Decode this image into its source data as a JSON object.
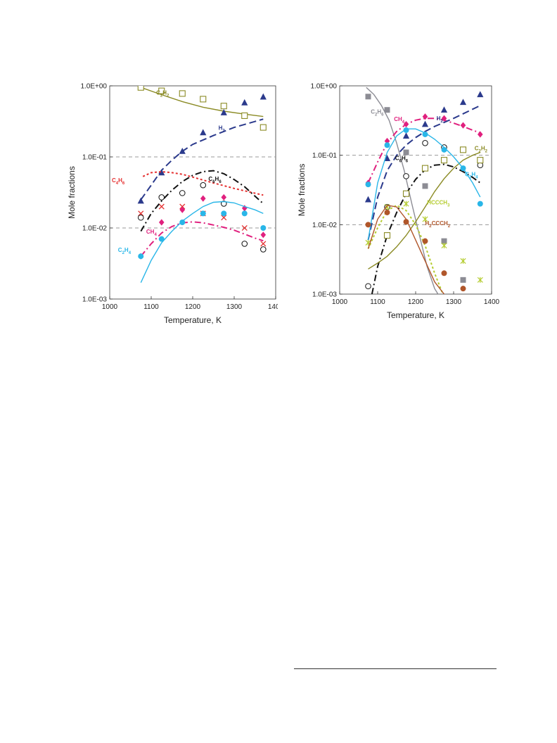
{
  "chart_data": [
    {
      "type": "line",
      "xlabel": "Temperature, K",
      "ylabel": "Mole fractions",
      "xlim": [
        1000,
        1400
      ],
      "ylim": [
        0.001,
        1
      ],
      "yscale": "log",
      "xticks": [
        "1000",
        "1100",
        "1200",
        "1300",
        "1400"
      ],
      "yticks": [
        "1.0E-03",
        "1.0E-02",
        "1.0E-01",
        "1.0E+00"
      ],
      "ytick_values": [
        0.001,
        0.01,
        0.1,
        1
      ],
      "dashed_reference_lines": [
        0.01,
        0.1
      ],
      "grid": false,
      "series": [
        {
          "name": "C2H2",
          "label_sub": [
            "C",
            "2",
            "H",
            "2"
          ],
          "color": "#8b8b25",
          "line": "solid",
          "marker": "square-open",
          "curve": {
            "x": [
              1075,
              1125,
              1175,
              1225,
              1275,
              1325,
              1370
            ],
            "y": [
              0.95,
              0.75,
              0.6,
              0.5,
              0.44,
              0.4,
              0.37
            ]
          },
          "points": {
            "x": [
              1075,
              1125,
              1175,
              1225,
              1275,
              1325,
              1370
            ],
            "y": [
              0.95,
              0.85,
              0.78,
              0.65,
              0.52,
              0.38,
              0.26
            ]
          },
          "label_at": [
            1112,
            0.75
          ]
        },
        {
          "name": "H2",
          "label_sub": [
            "H",
            "2"
          ],
          "color": "#2b3a8c",
          "line": "dashed",
          "marker": "triangle",
          "curve": {
            "x": [
              1075,
              1100,
              1125,
              1150,
              1175,
              1200,
              1250,
              1300,
              1370
            ],
            "y": [
              0.025,
              0.04,
              0.065,
              0.09,
              0.12,
              0.15,
              0.2,
              0.26,
              0.34
            ]
          },
          "points": {
            "x": [
              1075,
              1125,
              1175,
              1225,
              1275,
              1325,
              1370
            ],
            "y": [
              0.024,
              0.06,
              0.12,
              0.22,
              0.42,
              0.58,
              0.7
            ]
          },
          "label_at": [
            1262,
            0.24
          ]
        },
        {
          "name": "C4H6",
          "label_sub": [
            "C",
            "4",
            "H",
            "6"
          ],
          "color": "#e53030",
          "line": "dotted",
          "marker": "x",
          "curve": {
            "x": [
              1080,
              1100,
              1125,
              1150,
              1175,
              1200,
              1250,
              1300,
              1370
            ],
            "y": [
              0.053,
              0.06,
              0.062,
              0.06,
              0.057,
              0.052,
              0.043,
              0.036,
              0.029
            ]
          },
          "points": {
            "x": [
              1075,
              1125,
              1175,
              1225,
              1275,
              1325,
              1370
            ],
            "y": [
              0.016,
              0.02,
              0.02,
              0.016,
              0.014,
              0.01,
              0.006
            ]
          },
          "label_at": [
            1005,
            0.044
          ]
        },
        {
          "name": "C6H6",
          "label_sub": [
            "C",
            "6",
            "H",
            "6"
          ],
          "color": "#111111",
          "line": "dashdot",
          "marker": "circle-open",
          "curve": {
            "x": [
              1075,
              1100,
              1125,
              1150,
              1175,
              1200,
              1225,
              1250,
              1275,
              1300,
              1325,
              1350,
              1370
            ],
            "y": [
              0.009,
              0.016,
              0.024,
              0.034,
              0.045,
              0.055,
              0.062,
              0.064,
              0.058,
              0.048,
              0.038,
              0.028,
              0.022
            ]
          },
          "points": {
            "x": [
              1075,
              1125,
              1175,
              1225,
              1275,
              1325,
              1370
            ],
            "y": [
              0.014,
              0.027,
              0.031,
              0.04,
              0.022,
              0.006,
              0.005
            ]
          },
          "label_at": [
            1238,
            0.046
          ]
        },
        {
          "name": "CH4",
          "label_sub": [
            "CH",
            "4"
          ],
          "color": "#e0207e",
          "line": "dashdot",
          "marker": "diamond",
          "curve": {
            "x": [
              1075,
              1100,
              1125,
              1150,
              1175,
              1200,
              1225,
              1250,
              1275,
              1300,
              1325,
              1350,
              1370
            ],
            "y": [
              0.004,
              0.006,
              0.0085,
              0.0105,
              0.0118,
              0.0122,
              0.0118,
              0.011,
              0.0102,
              0.0093,
              0.0082,
              0.0072,
              0.0066
            ]
          },
          "points": {
            "x": [
              1075,
              1125,
              1175,
              1225,
              1275,
              1325,
              1370
            ],
            "y": [
              0.004,
              0.012,
              0.018,
              0.026,
              0.027,
              0.019,
              0.008
            ]
          },
          "label_at": [
            1088,
            0.0083
          ]
        },
        {
          "name": "C2H4",
          "label_sub": [
            "C",
            "2",
            "H",
            "4"
          ],
          "color": "#29b6e8",
          "line": "solid",
          "marker": "circle",
          "curve": {
            "x": [
              1075,
              1100,
              1125,
              1150,
              1175,
              1200,
              1225,
              1250,
              1275,
              1300,
              1325,
              1350,
              1370
            ],
            "y": [
              0.0017,
              0.0035,
              0.0062,
              0.009,
              0.0125,
              0.016,
              0.02,
              0.023,
              0.0235,
              0.0225,
              0.02,
              0.018,
              0.016
            ]
          },
          "points": {
            "x": [
              1075,
              1125,
              1175,
              1225,
              1275,
              1325,
              1370
            ],
            "y": [
              0.004,
              0.007,
              0.012,
              0.016,
              0.016,
              0.016,
              0.01
            ]
          },
          "label_at": [
            1020,
            0.0046
          ]
        }
      ]
    },
    {
      "type": "line",
      "xlabel": "Temperature, K",
      "ylabel": "Mole fractions",
      "xlim": [
        1000,
        1400
      ],
      "ylim": [
        0.001,
        1
      ],
      "yscale": "log",
      "xticks": [
        "1000",
        "1100",
        "1200",
        "1300",
        "1400"
      ],
      "yticks": [
        "1.0E-03",
        "1.0E-02",
        "1.0E-01",
        "1.0E+00"
      ],
      "ytick_values": [
        0.001,
        0.01,
        0.1,
        1
      ],
      "dashed_reference_lines": [
        0.01,
        0.1
      ],
      "grid": false,
      "series": [
        {
          "name": "C2H6",
          "label_sub": [
            "C",
            "2",
            "H",
            "6"
          ],
          "color": "#8c8c94",
          "line": "solid",
          "marker": "square",
          "curve": {
            "x": [
              1070,
              1090,
              1110,
              1130,
              1150,
              1170,
              1190,
              1210,
              1230,
              1250,
              1270
            ],
            "y": [
              0.95,
              0.75,
              0.52,
              0.32,
              0.15,
              0.06,
              0.02,
              0.007,
              0.0025,
              0.0012,
              0.0008
            ]
          },
          "points": {
            "x": [
              1075,
              1125,
              1175,
              1225,
              1275,
              1325
            ],
            "y": [
              0.7,
              0.45,
              0.11,
              0.036,
              0.0058,
              0.0016
            ]
          },
          "label_at": [
            1082,
            0.4
          ]
        },
        {
          "name": "CH4",
          "label_sub": [
            "CH",
            "4"
          ],
          "color": "#e0207e",
          "line": "dashdot",
          "marker": "diamond",
          "curve": {
            "x": [
              1075,
              1100,
              1125,
              1150,
              1175,
              1200,
              1225,
              1250,
              1275,
              1300,
              1325,
              1350,
              1370
            ],
            "y": [
              0.04,
              0.08,
              0.15,
              0.22,
              0.28,
              0.32,
              0.34,
              0.34,
              0.32,
              0.29,
              0.26,
              0.23,
              0.21
            ]
          },
          "points": {
            "x": [
              1075,
              1125,
              1175,
              1225,
              1275,
              1325,
              1370
            ],
            "y": [
              0.04,
              0.16,
              0.28,
              0.36,
              0.34,
              0.27,
              0.2
            ]
          },
          "label_at": [
            1143,
            0.31
          ]
        },
        {
          "name": "H2",
          "label_sub": [
            "H",
            "2"
          ],
          "color": "#2b3a8c",
          "line": "dashed",
          "marker": "triangle",
          "curve": {
            "x": [
              1075,
              1100,
              1125,
              1150,
              1175,
              1200,
              1225,
              1250,
              1300,
              1370
            ],
            "y": [
              0.006,
              0.025,
              0.06,
              0.1,
              0.14,
              0.18,
              0.22,
              0.26,
              0.34,
              0.52
            ]
          },
          "points": {
            "x": [
              1075,
              1125,
              1175,
              1225,
              1275,
              1325,
              1370
            ],
            "y": [
              0.023,
              0.09,
              0.19,
              0.28,
              0.45,
              0.58,
              0.75
            ]
          },
          "label_at": [
            1255,
            0.32
          ]
        },
        {
          "name": "C6H6",
          "label_sub": [
            "C",
            "6",
            "H",
            "6"
          ],
          "color": "#111111",
          "line": "dashdot",
          "marker": "circle-open",
          "curve": {
            "x": [
              1085,
              1100,
              1125,
              1150,
              1175,
              1200,
              1225,
              1250,
              1275,
              1300,
              1325,
              1350,
              1370
            ],
            "y": [
              0.001,
              0.0025,
              0.007,
              0.015,
              0.028,
              0.045,
              0.062,
              0.072,
              0.074,
              0.068,
              0.058,
              0.048,
              0.04
            ]
          },
          "points": {
            "x": [
              1075,
              1125,
              1175,
              1225,
              1275,
              1325,
              1370
            ],
            "y": [
              0.0013,
              0.018,
              0.05,
              0.15,
              0.13,
              0.12,
              0.072
            ]
          },
          "label_at": [
            1146,
            0.085
          ]
        },
        {
          "name": "C2H2",
          "label_sub": [
            "C",
            "2",
            "H",
            "2"
          ],
          "color": "#8b8b25",
          "line": "solid",
          "marker": "square-open",
          "curve": {
            "x": [
              1075,
              1100,
              1125,
              1150,
              1175,
              1200,
              1225,
              1250,
              1275,
              1300,
              1325,
              1350,
              1370
            ],
            "y": [
              0.0023,
              0.0028,
              0.0035,
              0.0048,
              0.007,
              0.011,
              0.018,
              0.03,
              0.046,
              0.065,
              0.085,
              0.1,
              0.11
            ]
          },
          "points": {
            "x": [
              1125,
              1175,
              1225,
              1275,
              1325,
              1370
            ],
            "y": [
              0.007,
              0.028,
              0.065,
              0.085,
              0.12,
              0.085
            ]
          },
          "label_at": [
            1355,
            0.118
          ]
        },
        {
          "name": "C2H4",
          "label_sub": [
            "C",
            "2",
            "H",
            "4"
          ],
          "color": "#29b6e8",
          "line": "solid",
          "marker": "circle",
          "curve": {
            "x": [
              1075,
              1100,
              1125,
              1150,
              1175,
              1200,
              1225,
              1250,
              1275,
              1300,
              1325,
              1350,
              1370
            ],
            "y": [
              0.006,
              0.04,
              0.11,
              0.19,
              0.24,
              0.24,
              0.21,
              0.17,
              0.13,
              0.095,
              0.065,
              0.04,
              0.025
            ]
          },
          "points": {
            "x": [
              1075,
              1125,
              1175,
              1225,
              1275,
              1325,
              1370
            ],
            "y": [
              0.038,
              0.14,
              0.23,
              0.2,
              0.12,
              0.065,
              0.02
            ]
          },
          "label_at": [
            1330,
            0.05
          ]
        },
        {
          "name": "HCCCH3",
          "label_sub": [
            "HCCCH",
            "3"
          ],
          "color": "#b4cc2e",
          "line": "dotted",
          "marker": "asterisk",
          "curve": {
            "x": [
              1075,
              1100,
              1125,
              1150,
              1175,
              1200,
              1225,
              1250,
              1275
            ],
            "y": [
              0.0045,
              0.009,
              0.016,
              0.019,
              0.016,
              0.01,
              0.005,
              0.002,
              0.0009
            ]
          },
          "points": {
            "x": [
              1075,
              1125,
              1175,
              1225,
              1275,
              1325,
              1370
            ],
            "y": [
              0.0055,
              0.018,
              0.02,
              0.012,
              0.005,
              0.003,
              0.0016
            ]
          },
          "label_at": [
            1230,
            0.0195
          ]
        },
        {
          "name": "H2CCCH2",
          "label_sub": [
            "H",
            "2",
            "CCCH",
            "2"
          ],
          "color": "#b0562a",
          "line": "solid",
          "marker": "circle",
          "curve": {
            "x": [
              1075,
              1100,
              1125,
              1150,
              1175,
              1200,
              1225,
              1250,
              1275
            ],
            "y": [
              0.0045,
              0.012,
              0.019,
              0.018,
              0.012,
              0.006,
              0.003,
              0.0015,
              0.001
            ]
          },
          "points": {
            "x": [
              1075,
              1125,
              1175,
              1225,
              1275,
              1325
            ],
            "y": [
              0.01,
              0.015,
              0.011,
              0.0058,
              0.002,
              0.0012
            ]
          },
          "label_at": [
            1225,
            0.0098
          ]
        }
      ]
    }
  ]
}
